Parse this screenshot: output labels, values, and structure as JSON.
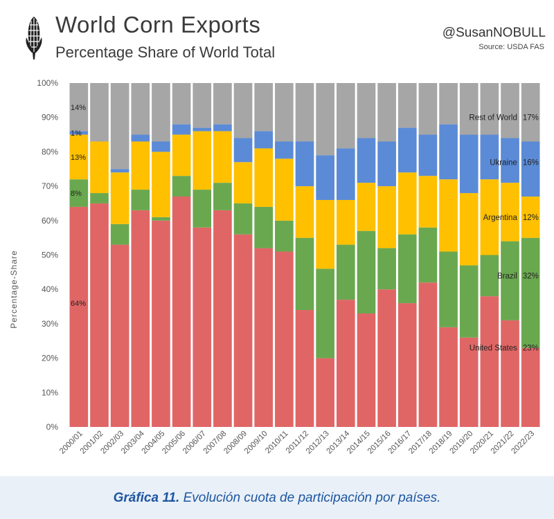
{
  "header": {
    "title": "World Corn Exports",
    "subtitle": "Percentage Share of World Total",
    "handle": "@SusanNOBULL",
    "source": "Source: USDA FAS",
    "logo_icon": "corn-cob-icon"
  },
  "caption": {
    "label": "Gráfica 11.",
    "text": "Evolución cuota de participación por países."
  },
  "chart_data": {
    "type": "bar",
    "stacked": true,
    "ylabel": "Percentage-Share",
    "xlabel": "",
    "ylim": [
      0,
      100
    ],
    "yticks": [
      "0%",
      "10%",
      "20%",
      "30%",
      "40%",
      "50%",
      "60%",
      "70%",
      "80%",
      "90%",
      "100%"
    ],
    "grid": false,
    "categories": [
      "2000/01",
      "2001/02",
      "2002/03",
      "2003/04",
      "2004/05",
      "2005/06",
      "2006/07",
      "2007/08",
      "2008/09",
      "2009/10",
      "2010/11",
      "2011/12",
      "2012/13",
      "2013/14",
      "2014/15",
      "2015/16",
      "2016/17",
      "2017/18",
      "2018/19",
      "2019/20",
      "2020/21",
      "2021/22",
      "2022/23"
    ],
    "series": [
      {
        "name": "United States",
        "color": "#e06666",
        "values": [
          64,
          65,
          53,
          63,
          60,
          67,
          58,
          63,
          56,
          52,
          51,
          34,
          20,
          37,
          33,
          40,
          36,
          42,
          29,
          26,
          38,
          31,
          23
        ]
      },
      {
        "name": "Brazil",
        "color": "#6aa84f",
        "values": [
          8,
          3,
          6,
          6,
          1,
          6,
          11,
          8,
          9,
          12,
          9,
          21,
          26,
          16,
          24,
          12,
          20,
          16,
          22,
          21,
          12,
          23,
          32
        ]
      },
      {
        "name": "Argentina",
        "color": "#ffc000",
        "values": [
          13,
          15,
          15,
          14,
          19,
          12,
          17,
          15,
          12,
          17,
          18,
          15,
          20,
          13,
          14,
          18,
          18,
          15,
          21,
          21,
          22,
          17,
          12
        ]
      },
      {
        "name": "Ukraine",
        "color": "#5b8bd6",
        "values": [
          1,
          0,
          1,
          2,
          3,
          3,
          1,
          2,
          7,
          5,
          5,
          13,
          13,
          15,
          13,
          13,
          13,
          12,
          16,
          17,
          13,
          13,
          16
        ]
      },
      {
        "name": "Rest of World",
        "color": "#a6a6a6",
        "values": [
          14,
          17,
          25,
          15,
          17,
          12,
          13,
          12,
          16,
          14,
          17,
          17,
          21,
          19,
          16,
          17,
          13,
          15,
          12,
          15,
          15,
          16,
          17
        ]
      }
    ],
    "first_year_labels": [
      "64%",
      "8%",
      "13%",
      "1%",
      "14%"
    ],
    "last_year_labels": [
      "23%",
      "32%",
      "12%",
      "16%",
      "17%"
    ]
  }
}
